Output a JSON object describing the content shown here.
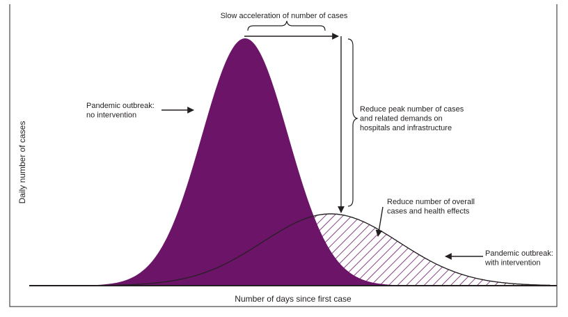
{
  "chart_data": {
    "type": "area",
    "xlabel": "Number of days since first case",
    "ylabel": "Daily number of cases",
    "colors": {
      "no_intervention": "#6b1468",
      "with_intervention_hatch": "#6b1468",
      "axis": "#231f20"
    },
    "series": [
      {
        "label_lines": [
          "Pandemic outbreak:",
          "no intervention"
        ],
        "fill": "solid"
      },
      {
        "label_lines": [
          "Pandemic outbreak:",
          "with intervention"
        ],
        "fill": "hatched"
      }
    ]
  },
  "annotations": {
    "slow_acceleration": "Slow acceleration of number of cases",
    "reduce_peak": [
      "Reduce peak number of cases",
      "and related demands on",
      "hospitals and infrastructure"
    ],
    "reduce_overall": [
      "Reduce number of overall",
      "cases and health effects"
    ]
  }
}
